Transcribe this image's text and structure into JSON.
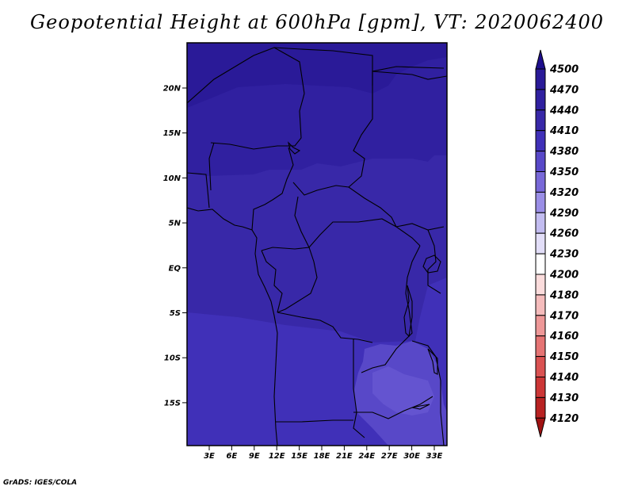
{
  "title": "Geopotential Height at 600hPa [gpm], VT: 2020062400",
  "credit": "GrADS: IGES/COLA",
  "map": {
    "lat_labels": [
      "20N",
      "15N",
      "10N",
      "5N",
      "EQ",
      "5S",
      "10S",
      "15S"
    ],
    "lon_labels": [
      "3E",
      "6E",
      "9E",
      "12E",
      "15E",
      "18E",
      "21E",
      "24E",
      "27E",
      "30E",
      "33E"
    ]
  },
  "colorbar": {
    "levels": [
      "4500",
      "4470",
      "4440",
      "4410",
      "4380",
      "4350",
      "4320",
      "4290",
      "4260",
      "4230",
      "4200",
      "4180",
      "4170",
      "4160",
      "4150",
      "4140",
      "4130",
      "4120"
    ],
    "colors": [
      "#1e0e8c",
      "#2a1a98",
      "#3020a0",
      "#3828a8",
      "#4030b8",
      "#5848c8",
      "#7868d8",
      "#9a8ee6",
      "#c2bcf0",
      "#e2def8",
      "#ffffff",
      "#fbdcdc",
      "#f5bcbc",
      "#ee9898",
      "#e57474",
      "#da5252",
      "#cc3636",
      "#b82222",
      "#a01212"
    ]
  },
  "chart_data": {
    "type": "heatmap",
    "title": "Geopotential Height at 600hPa [gpm], VT: 2020062400",
    "variable": "Geopotential Height at 600hPa",
    "units": "gpm",
    "valid_time": "2020062400",
    "lat_ticks": [
      "20N",
      "15N",
      "10N",
      "5N",
      "EQ",
      "5S",
      "10S",
      "15S"
    ],
    "lon_ticks": [
      "3E",
      "6E",
      "9E",
      "12E",
      "15E",
      "18E",
      "21E",
      "24E",
      "27E",
      "30E",
      "33E"
    ],
    "contour_levels": [
      4120,
      4130,
      4140,
      4150,
      4160,
      4170,
      4180,
      4200,
      4230,
      4260,
      4290,
      4320,
      4350,
      4380,
      4410,
      4440,
      4470,
      4500
    ],
    "field_summary": [
      {
        "region": "north (~13N-24N)",
        "range": "4440-4470"
      },
      {
        "region": "central (~10N-8S)",
        "range": "4410-4440"
      },
      {
        "region": "southeast (~9S-20S, 23E-33E)",
        "range": "4380-4410"
      }
    ]
  }
}
